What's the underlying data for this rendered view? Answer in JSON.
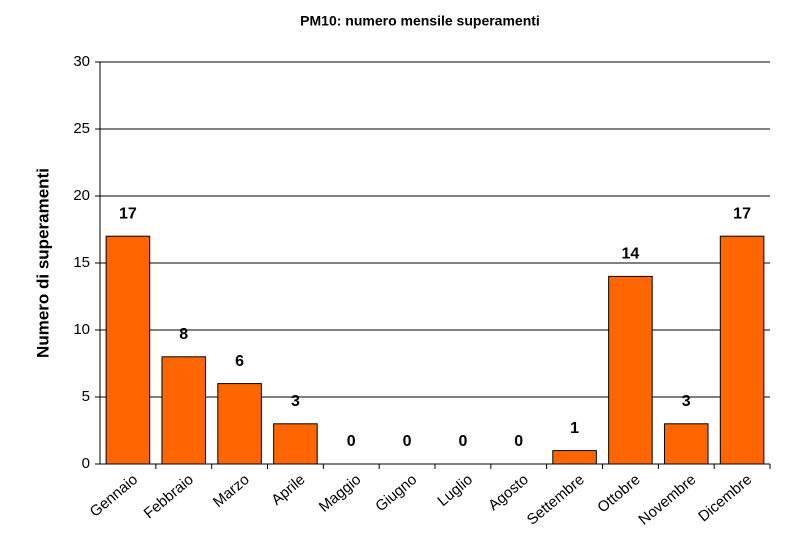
{
  "chart_data": {
    "type": "bar",
    "title": "PM10: numero mensile superamenti",
    "y_label": "Numero di superamenti",
    "categories": [
      "Gennaio",
      "Febbraio",
      "Marzo",
      "Aprile",
      "Maggio",
      "Giugno",
      "Luglio",
      "Agosto",
      "Settembre",
      "Ottobre",
      "Novembre",
      "Dicembre"
    ],
    "values": [
      17,
      8,
      6,
      3,
      0,
      0,
      0,
      0,
      1,
      14,
      3,
      17
    ],
    "color": "#ff6600",
    "ylim": [
      0,
      30
    ],
    "yticks": [
      0,
      5,
      10,
      15,
      20,
      25,
      30
    ],
    "grid": true
  }
}
